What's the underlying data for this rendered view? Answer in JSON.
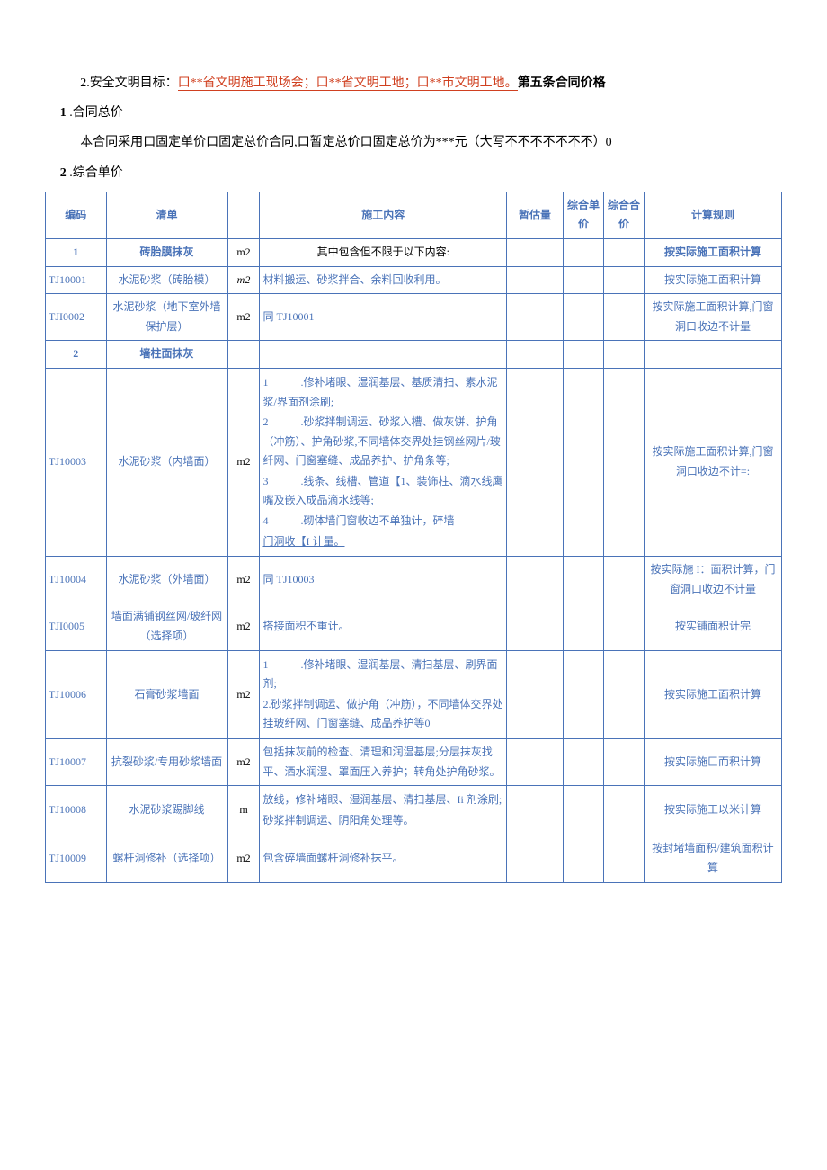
{
  "p1_prefix": "2.安全文明目标：",
  "p1_red": "口**省文明施工现场会；口**省文明工地；口**市文明工地。",
  "p1_suffix_bold": "第五条合同价格",
  "p2_bold": "1",
  "p2_rest": " .合同总价",
  "p3_a": "本合同采用",
  "p3_b": "口固定单价口固定总价",
  "p3_c": "合同,",
  "p3_d": "口暂定总价口固定总价",
  "p3_e": "为***元（大写不不不不不不不）0",
  "p4_bold": "2",
  "p4_rest": " .综合单价",
  "headers": {
    "code": "编码",
    "name": "清单",
    "unit": "",
    "content": "施工内容",
    "qty": "暂估量",
    "price": "综合单价",
    "total": "综合合价",
    "rule": "计算规则"
  },
  "rows": [
    {
      "type": "section",
      "code": "1",
      "name": "砖胎膜抹灰",
      "unit": "m2",
      "content": "其中包含但不限于以下内容:",
      "rule": "按实际施工面积计算"
    },
    {
      "type": "item",
      "code": "TJ10001",
      "name": "水泥砂浆（砖胎模）",
      "unit": "m2",
      "unit_italic": true,
      "content": "材料搬运、砂浆拌合、余料回收利用。",
      "rule": "按实际施工面积计算"
    },
    {
      "type": "item",
      "code": "TJI0002",
      "name": "水泥砂浆（地下室外墙保护层）",
      "unit": "m2",
      "content": "同 TJ10001",
      "rule": "按实际施工面积计算,门窗洞口收边不计量"
    },
    {
      "type": "section2",
      "code": "2",
      "name": "墙柱面抹灰"
    },
    {
      "type": "item",
      "code": "TJ10003",
      "name": "水泥砂浆（内墙面）",
      "unit": "m2",
      "content_list": [
        "1　　　.修补堵眼、湿润基层、基质清扫、素水泥浆/界面剂涂刷;",
        "2　　　.砂浆拌制调运、砂浆入槽、做灰饼、护角（冲筋）、护角砂浆,不同墙体交界处挂钢丝网片/玻纤网、门窗塞缝、成品养护、护角条等;",
        "3　　　.线条、线槽、管道【1、装饰柱、滴水线鹰嘴及嵌入成品滴水线等;",
        "4　　　.砌体墙门窗收边不单独计，碎墙"
      ],
      "content_underline": "门洞收【I 计量。",
      "rule": "按实际施工面积计算,门窗洞口收边不计=:"
    },
    {
      "type": "item",
      "code": "TJ10004",
      "name": "水泥砂浆（外墙面）",
      "unit": "m2",
      "content": "同 TJ10003",
      "rule": "按实际施 I：面积计算，门窗洞口收边不计量"
    },
    {
      "type": "item",
      "code": "TJI0005",
      "name": "墙面满铺钢丝网/玻纤网（选择项）",
      "unit": "m2",
      "content": "搭接面积不重计。",
      "rule": "按实铺面积计完"
    },
    {
      "type": "item",
      "code": "TJ10006",
      "name": "石膏砂浆墙面",
      "unit": "m2",
      "content_list": [
        "1　　　.修补堵眼、湿润基层、清扫基层、刷界面剂;",
        "2.砂浆拌制调运、做护角（冲筋），不同墙体交界处挂玻纤网、门窗塞缝、成品养护等0"
      ],
      "rule": "按实际施工面积计算"
    },
    {
      "type": "item",
      "code": "TJ10007",
      "name": "抗裂砂浆/专用砂浆墙面",
      "unit": "m2",
      "content": "包括抹灰前的检查、清理和润湿基层;分层抹灰找平、洒水润湿、罩面压入养护；转角处护角砂浆。",
      "rule": "按实际施匚而积计算"
    },
    {
      "type": "item",
      "code": "TJ10008",
      "name": "水泥砂浆踢脚线",
      "unit": "m",
      "content_list": [
        "放线，修补堵眼、湿润基层、清扫基层、Ii 剂涂刷;",
        "砂浆拌制调运、阴阳角处理等。"
      ],
      "rule": "按实际施工以米计算"
    },
    {
      "type": "item",
      "code": "TJ10009",
      "name": "螺杆洞修补（选择项）",
      "unit": "m2",
      "content": "包含碎墙面螺杆洞修补抹平。",
      "rule": "按封堵墙面积/建筑面积计算"
    }
  ]
}
